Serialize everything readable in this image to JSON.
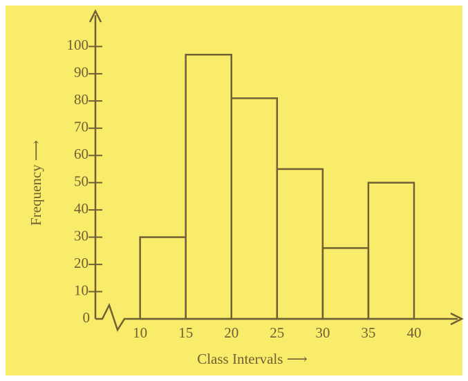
{
  "chart_data": {
    "type": "histogram",
    "x_label": "Class Intervals ⟶",
    "y_label": "Frequency ⟶",
    "bins": [
      10,
      15,
      20,
      25,
      30,
      35,
      40
    ],
    "values": [
      30,
      97,
      81,
      55,
      26,
      50
    ],
    "color": "#6e6034",
    "xlim": [
      4.5,
      45
    ],
    "xticks": [
      10,
      15,
      20,
      25,
      30,
      35,
      40
    ],
    "ylim": [
      0,
      112
    ],
    "yticks": [
      0,
      10,
      20,
      30,
      40,
      50,
      60,
      70,
      80,
      90,
      100
    ],
    "grid": false
  }
}
